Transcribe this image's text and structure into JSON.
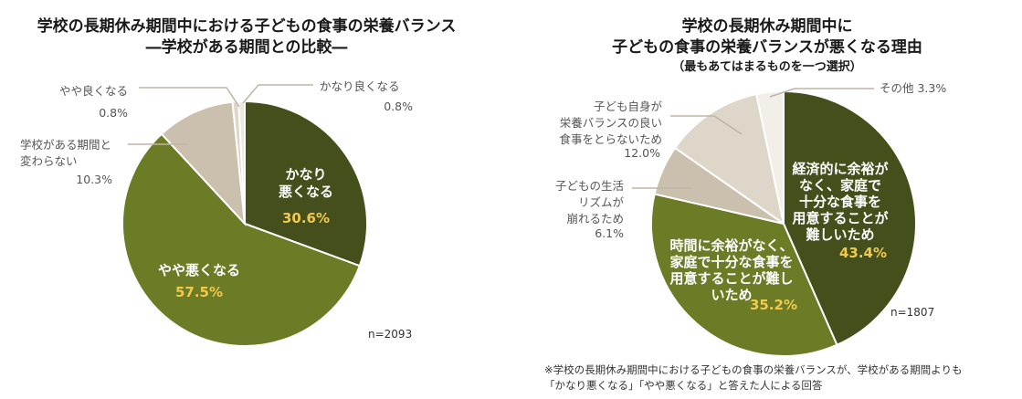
{
  "chart_data": [
    {
      "type": "pie",
      "title": [
        "学校の長期休み期間中における子どもの食事の栄養バランス",
        "―学校がある期間との比較―"
      ],
      "n_label": "n=2093",
      "slices": [
        {
          "label_lines": [
            "かなり",
            "悪くなる"
          ],
          "value_label": "30.6%",
          "value": 30.6,
          "color": "#454f1c",
          "inside": true
        },
        {
          "label_lines": [
            "やや悪くなる"
          ],
          "value_label": "57.5%",
          "value": 57.5,
          "color": "#6c7b25",
          "inside": true
        },
        {
          "label_lines": [
            "学校がある期間と",
            "変わらない"
          ],
          "value_label": "10.3%",
          "value": 10.3,
          "color": "#cbbfae",
          "inside": false
        },
        {
          "label_lines": [
            "やや良くなる"
          ],
          "value_label": "0.8%",
          "value": 0.8,
          "color": "#ddd6c9",
          "inside": false
        },
        {
          "label_lines": [
            "かなり良くなる"
          ],
          "value_label": "0.8%",
          "value": 0.8,
          "color": "#ece7df",
          "inside": false
        }
      ]
    },
    {
      "type": "pie",
      "title": [
        "学校の長期休み期間中に",
        "子どもの食事の栄養バランスが悪くなる理由"
      ],
      "subtitle": "（最もあてはまるものを一つ選択）",
      "n_label": "n=1807",
      "slices": [
        {
          "label_lines": [
            "経済的に余裕が",
            "なく、家庭で",
            "十分な食事を",
            "用意することが",
            "難しいため"
          ],
          "value_label": "43.4%",
          "value": 43.4,
          "color": "#454f1c",
          "inside": true
        },
        {
          "label_lines": [
            "時間に余裕がなく、",
            "家庭で十分な食事を",
            "用意することが難し",
            "いため"
          ],
          "value_label": "35.2%",
          "value": 35.2,
          "color": "#6c7b25",
          "inside": true
        },
        {
          "label_lines": [
            "子どもの生活",
            "リズムが",
            "崩れるため"
          ],
          "value_label": "6.1%",
          "value": 6.1,
          "color": "#cbbfae",
          "inside": false
        },
        {
          "label_lines": [
            "子ども自身が",
            "栄養バランスの良い",
            "食事をとらないため"
          ],
          "value_label": "12.0%",
          "value": 12.0,
          "color": "#ddd6c9",
          "inside": false
        },
        {
          "label_lines": [
            "その他"
          ],
          "value_label": "3.3%",
          "value": 3.3,
          "color": "#f2efe9",
          "inside": false
        }
      ]
    }
  ],
  "footnote": [
    "※学校の長期休み期間中における子どもの食事の栄養バランスが、学校がある期間よりも",
    "「かなり悪くなる」「やや悪くなる」と答えた人による回答"
  ]
}
